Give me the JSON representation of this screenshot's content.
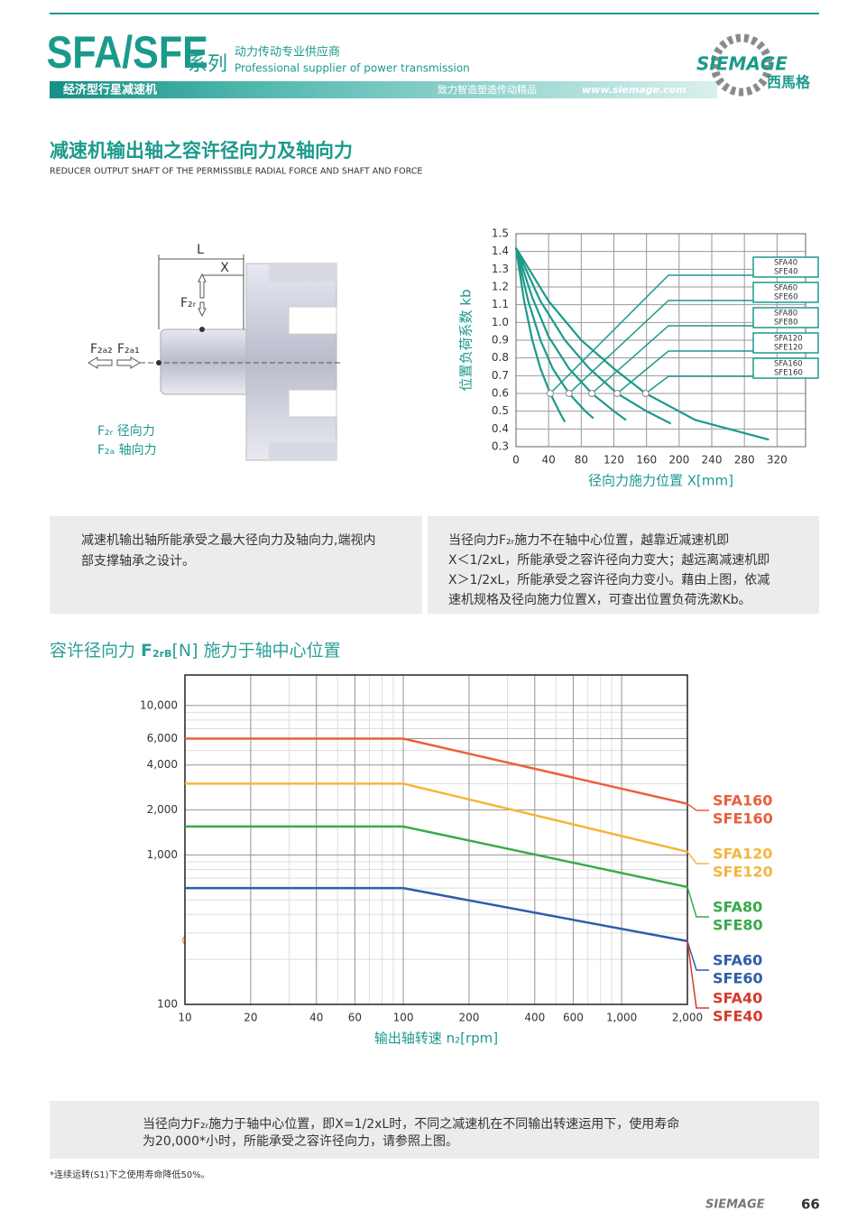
{
  "header": {
    "series": "SFA/SFE",
    "series_suffix": "系列",
    "tagline_cn": "动力传动专业供应商",
    "tagline_en": "Professional supplier of power transmission",
    "subtitle": "经济型行星减速机",
    "slogan": "致力智造塑造传动精品",
    "url": "www.siemage.com",
    "brand": "SIEMAGE",
    "brand_cn": "西馬格"
  },
  "section": {
    "title_cn": "减速机输出轴之容许径向力及轴向力",
    "title_en": "REDUCER OUTPUT SHAFT OF THE PERMISSIBLE RADIAL FORCE AND SHAFT AND FORCE"
  },
  "diagram": {
    "L": "L",
    "X": "X",
    "f2r": "F₂ᵣ",
    "f2a2": "F₂ₐ₂",
    "f2a1": "F₂ₐ₁",
    "legend": [
      "F₂ᵣ 径向力",
      "F₂ₐ 轴向力"
    ]
  },
  "text_left": [
    "减速机输出轴所能承受之最大径向力及轴向力,端视内",
    "部支撑轴承之设计。"
  ],
  "text_right": [
    "当径向力F₂ᵣ施力不在轴中心位置，越靠近减速机即",
    "X＜1/2xL，所能承受之容许径向力变大；越远离减速机即",
    "X＞1/2xL，所能承受之容许径向力变小。藉由上图，依减",
    "速机规格及径向施力位置X，可查出位置负荷洗漱Kb。"
  ],
  "chart2_title": [
    "容许径向力 ",
    "F",
    "2rB",
    "[N] 施力于轴中心位置"
  ],
  "note": [
    "当径向力F₂ᵣ施力于轴中心位置，即X=1/2xL时，不同之减速机在不同输出转速运用下，使用寿命",
    "为20,000*小时，所能承受之容许径向力，请参照上图。"
  ],
  "footnote": "*连续运转(S1)下之使用寿命降低50%。",
  "footer": {
    "brand": "SIEMAGE",
    "page": "66"
  },
  "chart_data": [
    {
      "type": "line",
      "y_label": "位置负荷系数 kb",
      "x_label": "径向力施力位置 X[mm]",
      "xlim": [
        0,
        355
      ],
      "ylim": [
        0.3,
        1.5
      ],
      "xticks": [
        0,
        40,
        80,
        120,
        160,
        200,
        240,
        280,
        320
      ],
      "yticks": [
        0.3,
        0.4,
        0.5,
        0.6,
        0.7,
        0.8,
        0.9,
        {
          "value": 1,
          "label": "1.0"
        },
        1.1,
        1.2,
        1.3,
        1.4,
        1.5
      ],
      "grid": true,
      "color": "#1b9a8c",
      "series": [
        {
          "name": [
            "SFA40",
            "SFE40"
          ],
          "x": [
            0,
            10,
            20,
            30,
            42,
            55,
            60
          ],
          "values": [
            1.42,
            1.12,
            0.9,
            0.74,
            0.6,
            0.48,
            0.44
          ]
        },
        {
          "name": [
            "SFA60",
            "SFE60"
          ],
          "x": [
            0,
            15,
            30,
            45,
            65,
            85,
            95
          ],
          "values": [
            1.42,
            1.12,
            0.9,
            0.74,
            0.6,
            0.5,
            0.46
          ]
        },
        {
          "name": [
            "SFA80",
            "SFE80"
          ],
          "x": [
            0,
            20,
            40,
            65,
            93,
            120,
            135
          ],
          "values": [
            1.42,
            1.14,
            0.92,
            0.74,
            0.6,
            0.5,
            0.45
          ]
        },
        {
          "name": [
            "SFA120",
            "SFE120"
          ],
          "x": [
            0,
            30,
            60,
            90,
            124,
            160,
            190
          ],
          "values": [
            1.42,
            1.12,
            0.9,
            0.74,
            0.6,
            0.5,
            0.43
          ]
        },
        {
          "name": [
            "SFA160",
            "SFE160"
          ],
          "x": [
            0,
            40,
            80,
            120,
            159,
            220,
            310
          ],
          "values": [
            1.42,
            1.12,
            0.9,
            0.74,
            0.6,
            0.45,
            0.34
          ]
        }
      ]
    },
    {
      "type": "line",
      "log_x": true,
      "log_y": true,
      "x_label": "输出轴转速 n₂[rpm]",
      "xlim": [
        10,
        2000
      ],
      "ylim": [
        100,
        16000
      ],
      "xticks": [
        10,
        20,
        40,
        60,
        100,
        200,
        400,
        600,
        {
          "value": 1000,
          "label": "1,000"
        },
        {
          "value": 2000,
          "label": "2,000"
        }
      ],
      "yticks": [
        100,
        {
          "value": 1000,
          "label": "1,000"
        },
        {
          "value": 2000,
          "label": "2,000"
        },
        {
          "value": 4000,
          "label": "4,000"
        },
        {
          "value": 6000,
          "label": "6,000"
        },
        {
          "value": 10000,
          "label": "10,000"
        }
      ],
      "grid": true,
      "x": [
        10,
        100,
        2000
      ],
      "series": [
        {
          "name": [
            "SFA160",
            "SFE160"
          ],
          "color": "#e8603c",
          "values": [
            6000,
            6000,
            2200
          ]
        },
        {
          "name": [
            "SFA120",
            "SFE120"
          ],
          "color": "#f4b63e",
          "values": [
            3000,
            3000,
            1050
          ]
        },
        {
          "name": [
            "SFA80",
            "SFE80"
          ],
          "color": "#3aaa4a",
          "values": [
            1550,
            1550,
            610
          ]
        },
        {
          "name": [
            "SFA60",
            "SFE60"
          ],
          "color": "#2e5ea8",
          "values": [
            600,
            600,
            265
          ]
        }
      ],
      "extra_legend": {
        "name": [
          "SFA40",
          "SFE40"
        ],
        "color": "#d63a2a"
      }
    }
  ]
}
